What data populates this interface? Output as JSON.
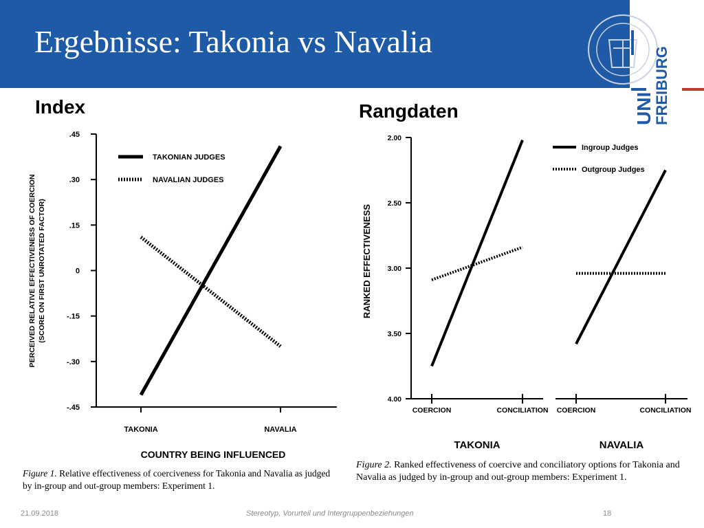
{
  "slide": {
    "title": "Ergebnisse: Takonia vs Navalia",
    "index_label": "Index",
    "rank_label": "Rangdaten",
    "footer": {
      "date": "21.09.2018",
      "center": "Stereotyp, Vorurteil und Intergruppenbeziehungen",
      "page": "18"
    },
    "logo": {
      "line1": "UNI",
      "line2": "FREIBURG"
    }
  },
  "chart_data": [
    {
      "type": "line",
      "ylabel": "PERCEIVED RELATIVE EFFECTIVENESS OF COERCION (SCORE ON FIRST UNROTATED FACTOR)",
      "xlabel": "COUNTRY BEING INFLUENCED",
      "categories": [
        "TAKONIA",
        "NAVALIA"
      ],
      "yticks": [
        ".45",
        ".30",
        ".15",
        "0",
        "-.15",
        "-.30",
        "-.45"
      ],
      "ylim": [
        -0.45,
        0.45
      ],
      "series": [
        {
          "name": "TAKONIAN JUDGES",
          "values": [
            -0.41,
            0.41
          ]
        },
        {
          "name": "NAVALIAN JUDGES",
          "values": [
            0.11,
            -0.25
          ]
        }
      ],
      "caption_label": "Figure 1.",
      "caption_text": "Relative effectiveness of coerciveness for Takonia and Navalia as judged by in-group and out-group members: Experiment 1."
    },
    {
      "type": "line",
      "ylabel": "RANKED EFFECTIVENESS",
      "yticks": [
        "2.00",
        "2.50",
        "3.00",
        "3.50",
        "4.00"
      ],
      "ylim": [
        2.0,
        4.0
      ],
      "categories": [
        "COERCION",
        "CONCILIATION",
        "COERCION",
        "CONCILIATION"
      ],
      "groups": [
        "TAKONIA",
        "NAVALIA"
      ],
      "series": [
        {
          "name": "Ingroup Judges",
          "takonia": [
            3.75,
            2.02
          ],
          "navalia": [
            3.58,
            2.25
          ]
        },
        {
          "name": "Outgroup Judges",
          "takonia": [
            3.09,
            2.84
          ],
          "navalia": [
            3.04,
            3.04
          ]
        }
      ],
      "caption_label": "Figure 2.",
      "caption_text": "Ranked effectiveness of coercive and conciliatory options for Takonia and Navalia as judged by in-group and out-group members: Experiment 1."
    }
  ]
}
